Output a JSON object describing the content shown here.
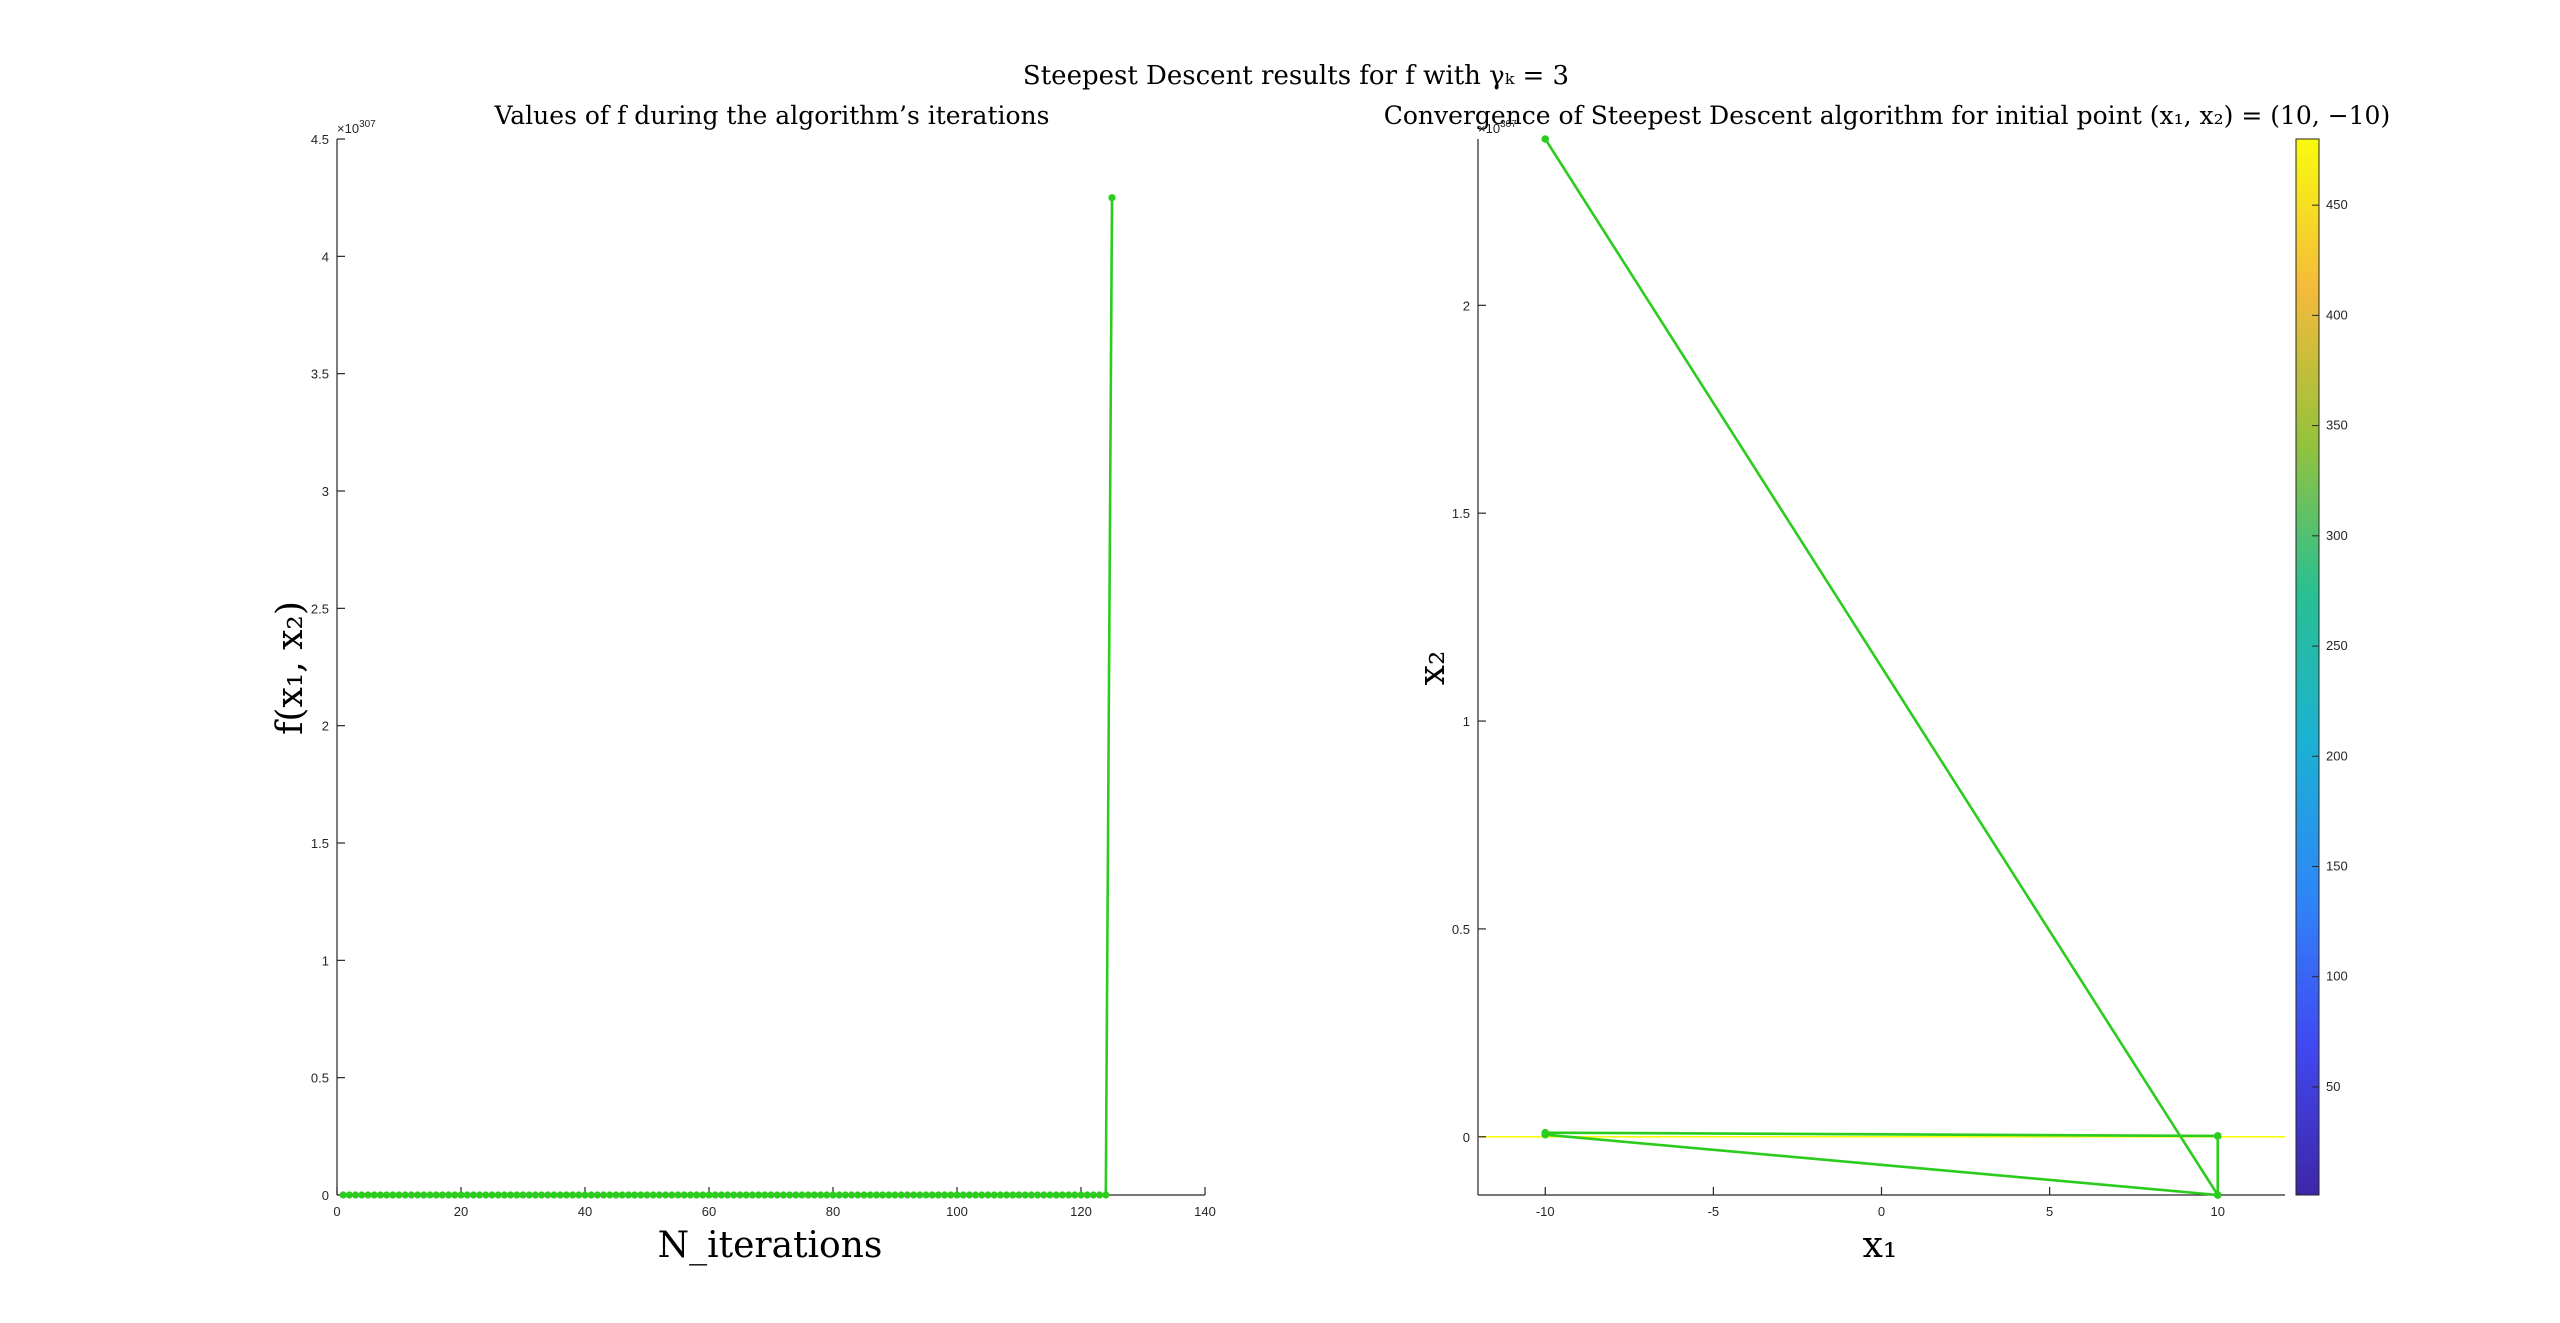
{
  "figure": {
    "suptitle": "Steepest Descent results for f with γₖ = 3"
  },
  "chart_data": [
    {
      "type": "line",
      "title": "Values of f during the algorithm’s iterations",
      "xlabel": "N_iterations",
      "ylabel": "f(x₁, x₂)",
      "exponent_label": "×10³⁰⁷",
      "exponent_base": "×10",
      "exponent_power": "307",
      "xlim": [
        0,
        140
      ],
      "ylim": [
        0,
        4.5
      ],
      "xticks": [
        0,
        20,
        40,
        60,
        80,
        100,
        120,
        140
      ],
      "yticks": [
        0,
        0.5,
        1,
        1.5,
        2,
        2.5,
        3,
        3.5,
        4,
        4.5
      ],
      "series_color": "#2ccc1e",
      "series": [
        {
          "x_start": 1,
          "x_end": 124,
          "y_const": 0,
          "last_point": {
            "x": 125,
            "y": 4.25
          }
        }
      ]
    },
    {
      "type": "line",
      "title": "Convergence of Steepest Descent algorithm for initial point (x₁, x₂) = (10, −10)",
      "xlabel": "x₁",
      "ylabel": "x₂",
      "exponent_label": "×10³⁰⁷",
      "exponent_base": "×10",
      "exponent_power": "307",
      "xlim": [
        -12,
        12
      ],
      "ylim": [
        -0.14,
        2.4
      ],
      "xticks": [
        -10,
        -5,
        0,
        5,
        10
      ],
      "yticks": [
        0,
        0.5,
        1,
        1.5,
        2
      ],
      "series_color": "#2ccc1e",
      "path": [
        {
          "x": 10,
          "y": -0.14
        },
        {
          "x": -10,
          "y": 0.005
        },
        {
          "x": -10,
          "y": 0.01
        },
        {
          "x": 10,
          "y": 0.002
        },
        {
          "x": 10,
          "y": 0.002
        },
        {
          "x": 10,
          "y": -0.14
        },
        {
          "x": -10,
          "y": 2.4
        }
      ],
      "contour_line": {
        "y": 0,
        "color": "#f9fb0e"
      },
      "colorbar": {
        "range": [
          1,
          480
        ],
        "ticks": [
          50,
          100,
          150,
          200,
          250,
          300,
          350,
          400,
          450
        ],
        "colors": [
          "#3e26a8",
          "#4149f2",
          "#2e87f7",
          "#1bb1d3",
          "#29c091",
          "#96c23b",
          "#f4ba3b",
          "#f9fb0e"
        ]
      }
    }
  ]
}
